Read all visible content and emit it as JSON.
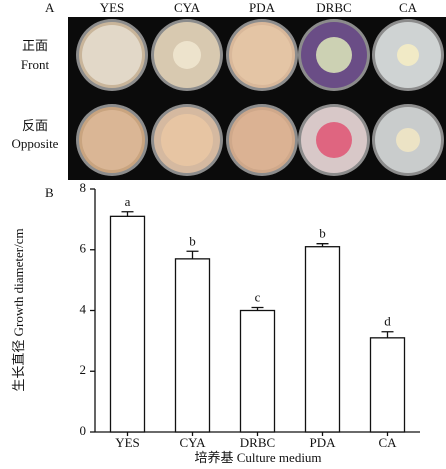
{
  "panel_a": {
    "label": "A",
    "columns": [
      "YES",
      "CYA",
      "PDA",
      "DRBC",
      "CA"
    ],
    "rows": [
      {
        "zh": "正面",
        "en": "Front"
      },
      {
        "zh": "反面",
        "en": "Opposite"
      }
    ]
  },
  "chart_data": {
    "type": "bar",
    "panel_label": "B",
    "y_label": "生长直径 Growth diameter/cm",
    "x_label": "培养基 Culture medium",
    "categories": [
      "YES",
      "CYA",
      "DRBC",
      "PDA",
      "CA"
    ],
    "values": [
      7.1,
      5.7,
      4.0,
      6.1,
      3.1
    ],
    "errors": [
      0.15,
      0.25,
      0.1,
      0.1,
      0.2
    ],
    "significance": [
      "a",
      "b",
      "c",
      "b",
      "d"
    ],
    "color": "#ffffff",
    "ylim": [
      0,
      8
    ],
    "yticks": [
      0,
      2,
      4,
      6,
      8
    ],
    "grid": false
  }
}
